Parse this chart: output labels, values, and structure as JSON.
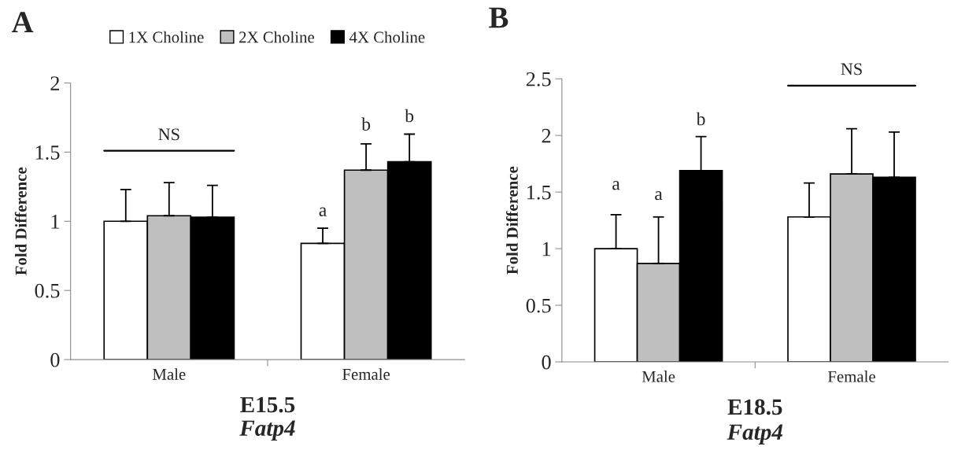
{
  "chart_data": [
    {
      "type": "bar",
      "categories": [
        "Male",
        "Female"
      ],
      "ylabel": "Fold Difference",
      "xlabel": "E15.5",
      "subtitle": "Fatp4",
      "series": [
        {
          "name": "1X Choline",
          "color": "#ffffff",
          "values": [
            1.0,
            0.84
          ],
          "errors": [
            [
              1.0,
              1.23
            ],
            [
              0.84,
              0.95
            ]
          ]
        },
        {
          "name": "2X Choline",
          "color": "#bfbfbf",
          "values": [
            1.04,
            1.37
          ],
          "errors": [
            [
              1.04,
              1.28
            ],
            [
              1.37,
              1.56
            ]
          ]
        },
        {
          "name": "4X Choline",
          "color": "#000000",
          "values": [
            1.03,
            1.43
          ],
          "errors": [
            [
              1.03,
              1.26
            ],
            [
              1.43,
              1.63
            ]
          ]
        }
      ],
      "ylim": [
        0,
        2
      ],
      "yticks": [
        0,
        0.5,
        1,
        1.5,
        2
      ],
      "grid": false,
      "legend": "top",
      "annotations": [
        "A",
        "NS",
        "a",
        "b",
        "b"
      ]
    },
    {
      "type": "bar",
      "categories": [
        "Male",
        "Female"
      ],
      "ylabel": "Fold Difference",
      "xlabel": "E18.5",
      "subtitle": "Fatp4",
      "series": [
        {
          "color": "#ffffff",
          "values": [
            1.0,
            1.28
          ],
          "errors": [
            [
              1.0,
              1.3
            ],
            [
              1.28,
              1.58
            ]
          ]
        },
        {
          "color": "#bfbfbf",
          "values": [
            0.87,
            1.66
          ],
          "errors": [
            [
              0.87,
              1.28
            ],
            [
              1.66,
              2.06
            ]
          ]
        },
        {
          "color": "#000000",
          "values": [
            1.69,
            1.63
          ],
          "errors": [
            [
              1.69,
              1.99
            ],
            [
              1.63,
              2.03
            ]
          ]
        }
      ],
      "ylim": [
        0,
        2.5
      ],
      "yticks": [
        0,
        0.5,
        1,
        1.5,
        2,
        2.5
      ],
      "grid": false,
      "legend": false,
      "annotations": [
        "B",
        "NS",
        "a",
        "a",
        "b"
      ]
    }
  ]
}
